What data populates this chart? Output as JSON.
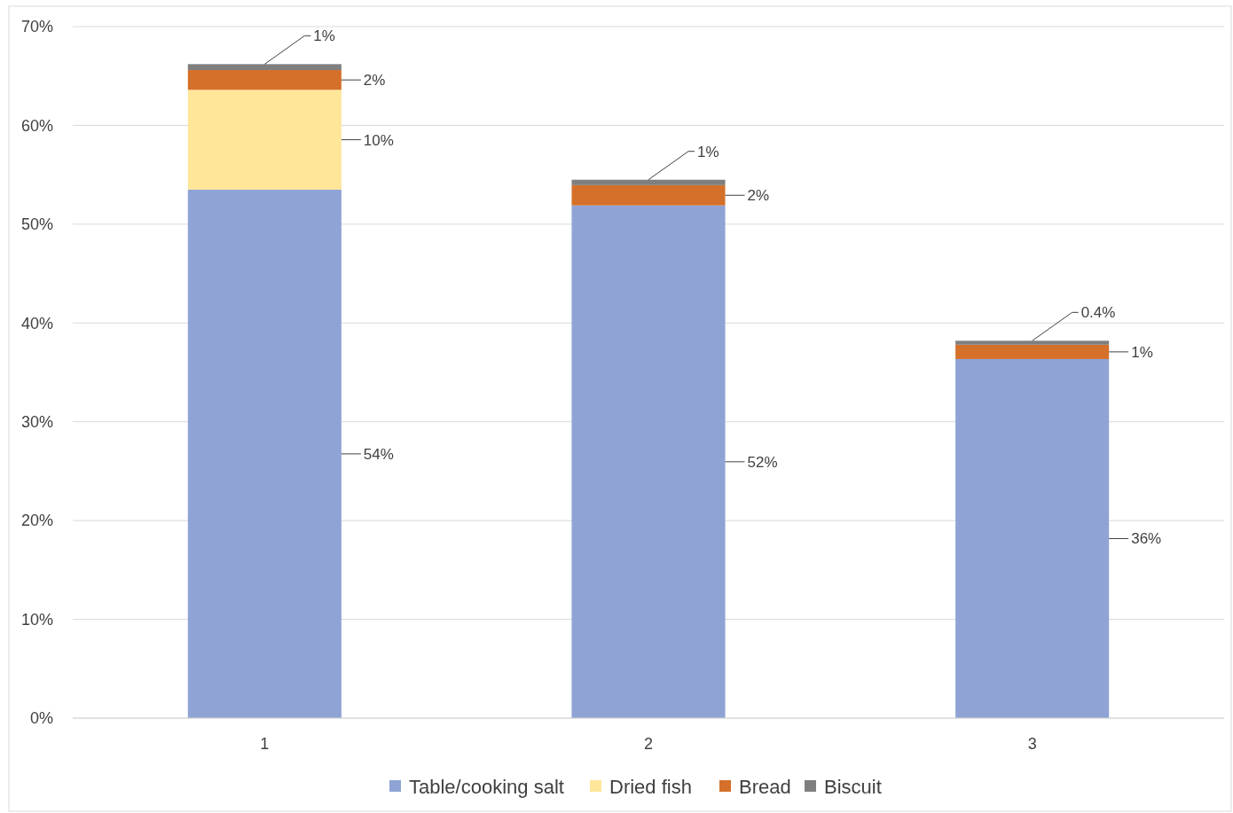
{
  "chart_data": {
    "type": "bar",
    "stacked": true,
    "categories": [
      "1",
      "2",
      "3"
    ],
    "series": [
      {
        "name": "Table/cooking salt",
        "color": "#8fa3d4",
        "values": [
          53.5,
          51.9,
          36.35
        ],
        "value_labels": [
          "54%",
          "52%",
          "36%"
        ]
      },
      {
        "name": "Dried fish",
        "color": "#ffe699",
        "values": [
          10.1,
          0,
          0
        ],
        "value_labels": [
          "10%",
          null,
          null
        ]
      },
      {
        "name": "Bread",
        "color": "#d4702a",
        "values": [
          2.0,
          2.05,
          1.45
        ],
        "value_labels": [
          "2%",
          "2%",
          "1%"
        ]
      },
      {
        "name": "Biscuit",
        "color": "#7f7f7f",
        "values": [
          0.6,
          0.55,
          0.4
        ],
        "value_labels": [
          "1%",
          "1%",
          "0.4%"
        ]
      }
    ],
    "ylim": [
      0,
      70
    ],
    "yticks": [
      {
        "value": 0,
        "label": "0%"
      },
      {
        "value": 10,
        "label": "10%"
      },
      {
        "value": 20,
        "label": "20%"
      },
      {
        "value": 30,
        "label": "30%"
      },
      {
        "value": 40,
        "label": "40%"
      },
      {
        "value": 50,
        "label": "50%"
      },
      {
        "value": 60,
        "label": "60%"
      },
      {
        "value": 70,
        "label": "70%"
      }
    ],
    "grid": "y",
    "legend": "bottom"
  }
}
